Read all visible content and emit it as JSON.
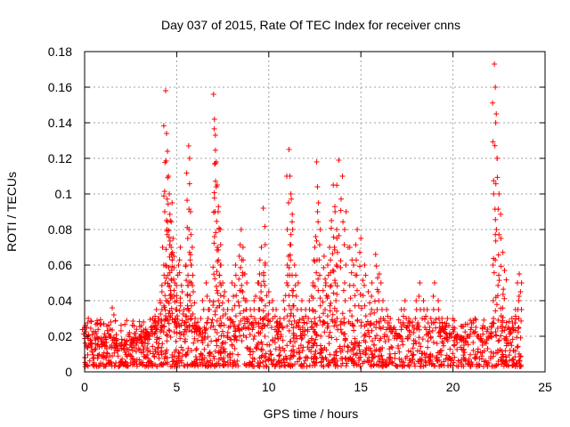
{
  "chart_data": {
    "type": "scatter",
    "title": "Day 037 of 2015, Rate Of TEC Index for receiver cnns",
    "xlabel": "GPS time / hours",
    "ylabel": "ROTI / TECUs",
    "xlim": [
      0,
      25
    ],
    "ylim": [
      0,
      0.18
    ],
    "xticks": [
      0,
      5,
      10,
      15,
      20,
      25
    ],
    "xtick_labels": [
      "0",
      "5",
      "10",
      "15",
      "20",
      "25"
    ],
    "yticks": [
      0,
      0.02,
      0.04,
      0.06,
      0.08,
      0.1,
      0.12,
      0.14,
      0.16,
      0.18
    ],
    "ytick_labels": [
      "0",
      "0.02",
      "0.04",
      "0.06",
      "0.08",
      "0.1",
      "0.12",
      "0.14",
      "0.16",
      "0.18"
    ],
    "grid": true,
    "marker": "plus",
    "color": "#ff0000",
    "series": [
      {
        "name": "ROTI",
        "x": [
          0.0,
          0.1,
          0.2,
          0.3,
          0.4,
          0.6,
          0.8,
          1.0,
          1.2,
          1.4,
          1.5,
          1.6,
          1.8,
          2.0,
          2.2,
          2.4,
          2.5,
          2.6,
          2.8,
          3.0,
          3.1,
          3.2,
          3.3,
          3.4,
          3.5,
          3.6,
          3.7,
          3.8,
          3.9,
          4.0,
          4.1,
          4.2,
          4.3,
          4.35,
          4.4,
          4.45,
          4.5,
          4.55,
          4.6,
          4.65,
          4.7,
          4.75,
          4.8,
          4.85,
          4.9,
          5.0,
          5.1,
          5.2,
          5.3,
          5.4,
          5.5,
          5.6,
          5.65,
          5.7,
          5.75,
          5.8,
          5.9,
          6.0,
          6.2,
          6.4,
          6.6,
          6.8,
          7.0,
          7.05,
          7.1,
          7.15,
          7.2,
          7.25,
          7.3,
          7.4,
          7.5,
          7.6,
          7.8,
          8.0,
          8.2,
          8.4,
          8.5,
          8.6,
          8.7,
          8.8,
          9.0,
          9.2,
          9.4,
          9.5,
          9.6,
          9.7,
          9.8,
          10.0,
          10.2,
          10.4,
          10.6,
          10.8,
          11.0,
          11.1,
          11.15,
          11.2,
          11.3,
          11.4,
          11.6,
          11.8,
          12.0,
          12.2,
          12.4,
          12.5,
          12.6,
          12.7,
          12.8,
          13.0,
          13.1,
          13.2,
          13.3,
          13.4,
          13.5,
          13.6,
          13.7,
          13.8,
          14.0,
          14.2,
          14.4,
          14.6,
          14.8,
          15.0,
          15.2,
          15.4,
          15.6,
          15.8,
          16.0,
          16.2,
          16.4,
          16.6,
          16.8,
          17.0,
          17.2,
          17.4,
          17.6,
          17.8,
          18.0,
          18.2,
          18.4,
          18.6,
          18.8,
          19.0,
          19.2,
          19.4,
          19.6,
          19.8,
          20.0,
          20.2,
          20.4,
          20.6,
          20.8,
          21.0,
          21.2,
          21.4,
          21.6,
          21.8,
          22.0,
          22.2,
          22.25,
          22.3,
          22.35,
          22.4,
          22.5,
          22.6,
          22.8,
          23.0,
          23.2,
          23.4,
          23.5,
          23.6
        ],
        "y": [
          0.025,
          0.02,
          0.03,
          0.015,
          0.012,
          0.018,
          0.014,
          0.016,
          0.013,
          0.02,
          0.036,
          0.015,
          0.012,
          0.013,
          0.011,
          0.01,
          0.005,
          0.012,
          0.015,
          0.02,
          0.016,
          0.028,
          0.018,
          0.022,
          0.02,
          0.025,
          0.03,
          0.025,
          0.035,
          0.03,
          0.04,
          0.045,
          0.06,
          0.09,
          0.158,
          0.134,
          0.124,
          0.11,
          0.1,
          0.085,
          0.07,
          0.095,
          0.075,
          0.065,
          0.05,
          0.04,
          0.06,
          0.07,
          0.045,
          0.035,
          0.06,
          0.075,
          0.127,
          0.12,
          0.09,
          0.06,
          0.045,
          0.03,
          0.025,
          0.04,
          0.05,
          0.04,
          0.156,
          0.142,
          0.133,
          0.118,
          0.105,
          0.09,
          0.08,
          0.06,
          0.05,
          0.045,
          0.04,
          0.05,
          0.06,
          0.065,
          0.08,
          0.07,
          0.055,
          0.04,
          0.035,
          0.04,
          0.05,
          0.055,
          0.07,
          0.092,
          0.06,
          0.045,
          0.04,
          0.035,
          0.03,
          0.04,
          0.06,
          0.125,
          0.11,
          0.1,
          0.08,
          0.06,
          0.05,
          0.04,
          0.035,
          0.04,
          0.05,
          0.07,
          0.118,
          0.095,
          0.08,
          0.065,
          0.05,
          0.06,
          0.07,
          0.085,
          0.105,
          0.09,
          0.075,
          0.119,
          0.11,
          0.09,
          0.07,
          0.06,
          0.08,
          0.075,
          0.06,
          0.045,
          0.05,
          0.066,
          0.055,
          0.04,
          0.035,
          0.03,
          0.025,
          0.02,
          0.035,
          0.04,
          0.03,
          0.028,
          0.04,
          0.05,
          0.04,
          0.035,
          0.03,
          0.05,
          0.04,
          0.03,
          0.025,
          0.02,
          0.025,
          0.02,
          0.018,
          0.015,
          0.02,
          0.025,
          0.03,
          0.02,
          0.015,
          0.016,
          0.02,
          0.03,
          0.173,
          0.16,
          0.145,
          0.12,
          0.1,
          0.075,
          0.057,
          0.025,
          0.03,
          0.035,
          0.05,
          0.055
        ]
      }
    ],
    "noise_band": {
      "note": "dense background scatter of ROTI points between about 0.003 and 0.03 TECU/s across the whole day",
      "y_min": 0.003,
      "y_max": 0.03
    }
  }
}
